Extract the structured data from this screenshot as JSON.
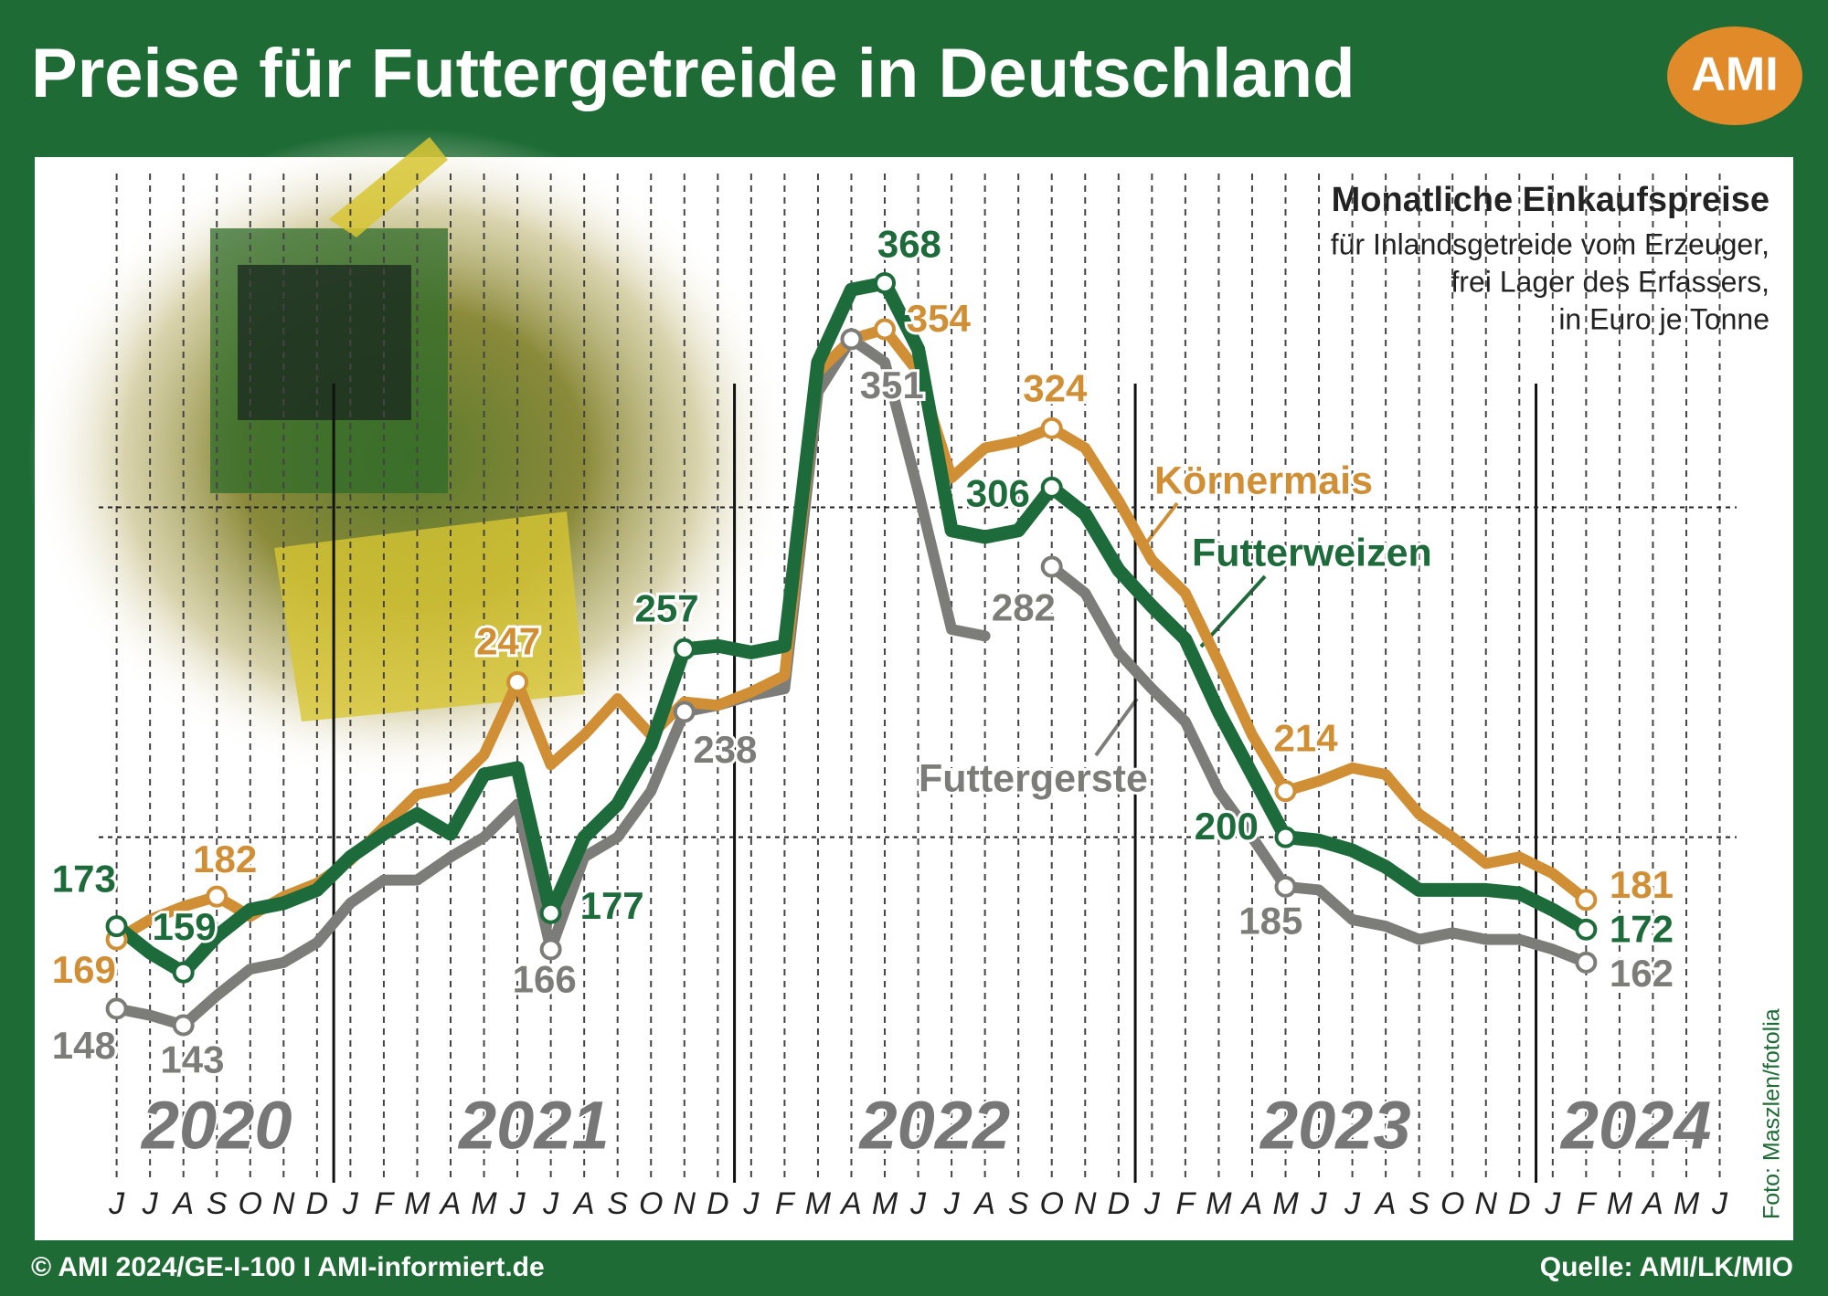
{
  "title": "Preise für Futtergetreide in Deutschland",
  "logo": "AMI",
  "footer_left": "© AMI 2024/GE-I-100 I AMI-informiert.de",
  "footer_right": "Quelle: AMI/LK/MIO",
  "photo_credit": "Foto: Maszlen/fotolia",
  "chart_data": {
    "type": "line",
    "title": "Monatliche Einkaufspreise",
    "subtitle": [
      "für Inlandsgetreide vom Erzeuger,",
      "frei Lager des Erfassers,",
      "in Euro je Tonne"
    ],
    "categories": [
      "J",
      "J",
      "A",
      "S",
      "O",
      "N",
      "D",
      "J",
      "F",
      "M",
      "A",
      "M",
      "J",
      "J",
      "A",
      "S",
      "O",
      "N",
      "D",
      "J",
      "F",
      "M",
      "A",
      "M",
      "J",
      "J",
      "A",
      "S",
      "O",
      "N",
      "D",
      "J",
      "F",
      "M",
      "A",
      "M",
      "J",
      "J",
      "A",
      "S",
      "O",
      "N",
      "D",
      "J",
      "F",
      "M",
      "A",
      "M",
      "J"
    ],
    "years": [
      "2020",
      "2021",
      "2022",
      "2023",
      "2024"
    ],
    "ylim": [
      80,
      400
    ],
    "ygrid": [
      200,
      300
    ],
    "series": [
      {
        "name": "Futtergerste",
        "color": "#7c7d78",
        "values": [
          148,
          146,
          143,
          152,
          160,
          162,
          168,
          180,
          187,
          187,
          194,
          200,
          210,
          166,
          194,
          200,
          214,
          238,
          240,
          243,
          245,
          335,
          351,
          344,
          305,
          263,
          261,
          null,
          282,
          274,
          256,
          245,
          235,
          214,
          200,
          185,
          184,
          175,
          173,
          169,
          171,
          169,
          169,
          166,
          162,
          null,
          null,
          null,
          null
        ],
        "labeled": [
          0,
          2,
          13,
          17,
          22,
          28,
          35,
          44
        ]
      },
      {
        "name": "Körnermais",
        "color": "#d08f35",
        "values": [
          169,
          175,
          179,
          182,
          176,
          182,
          186,
          193,
          203,
          213,
          215,
          225,
          247,
          222,
          231,
          242,
          231,
          241,
          240,
          244,
          249,
          341,
          351,
          354,
          341,
          309,
          318,
          320,
          324,
          318,
          302,
          284,
          274,
          253,
          231,
          214,
          217,
          221,
          219,
          207,
          200,
          192,
          194,
          189,
          181,
          null,
          null,
          null,
          null
        ],
        "labeled": [
          0,
          3,
          12,
          23,
          28,
          35,
          44
        ]
      },
      {
        "name": "Futterweizen",
        "color": "#1d6b3a",
        "values": [
          173,
          165,
          159,
          170,
          178,
          180,
          184,
          194,
          201,
          207,
          201,
          219,
          221,
          177,
          200,
          210,
          228,
          257,
          258,
          256,
          258,
          344,
          366,
          368,
          348,
          293,
          291,
          293,
          306,
          298,
          281,
          270,
          260,
          238,
          219,
          200,
          199,
          196,
          191,
          184,
          184,
          184,
          183,
          178,
          172,
          null,
          null,
          null,
          null
        ],
        "labeled": [
          0,
          2,
          13,
          17,
          23,
          28,
          35,
          44
        ]
      }
    ]
  }
}
